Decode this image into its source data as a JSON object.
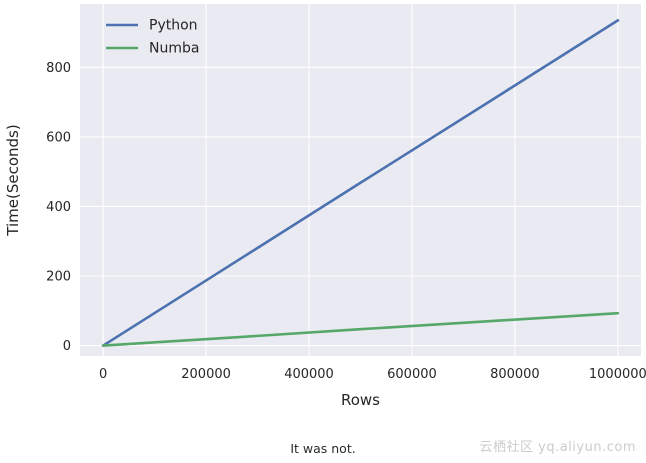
{
  "chart_data": {
    "type": "line",
    "title": "",
    "xlabel": "Rows",
    "ylabel": "Time(Seconds)",
    "xlim": [
      -45000,
      1045000
    ],
    "ylim": [
      -30,
      982
    ],
    "grid": true,
    "legend_position": "upper left",
    "x_ticks": [
      0,
      200000,
      400000,
      600000,
      800000,
      1000000
    ],
    "x_tick_labels": [
      "0",
      "200000",
      "400000",
      "600000",
      "800000",
      "1000000"
    ],
    "y_ticks": [
      0,
      200,
      400,
      600,
      800
    ],
    "y_tick_labels": [
      "0",
      "200",
      "400",
      "600",
      "800"
    ],
    "series": [
      {
        "name": "Python",
        "color": "#4c72b0",
        "x": [
          0,
          250000,
          500000,
          750000,
          1000000
        ],
        "y": [
          0,
          234,
          468,
          701,
          935
        ]
      },
      {
        "name": "Numba",
        "color": "#55a868",
        "x": [
          0,
          250000,
          500000,
          750000,
          1000000
        ],
        "y": [
          0,
          23,
          47,
          70,
          93
        ]
      }
    ]
  },
  "caption": "It was not.",
  "watermark": "云栖社区 yq.aliyun.com",
  "colors": {
    "plot_bg": "#eaeaf2",
    "grid": "#ffffff",
    "tick_text": "#262626"
  }
}
